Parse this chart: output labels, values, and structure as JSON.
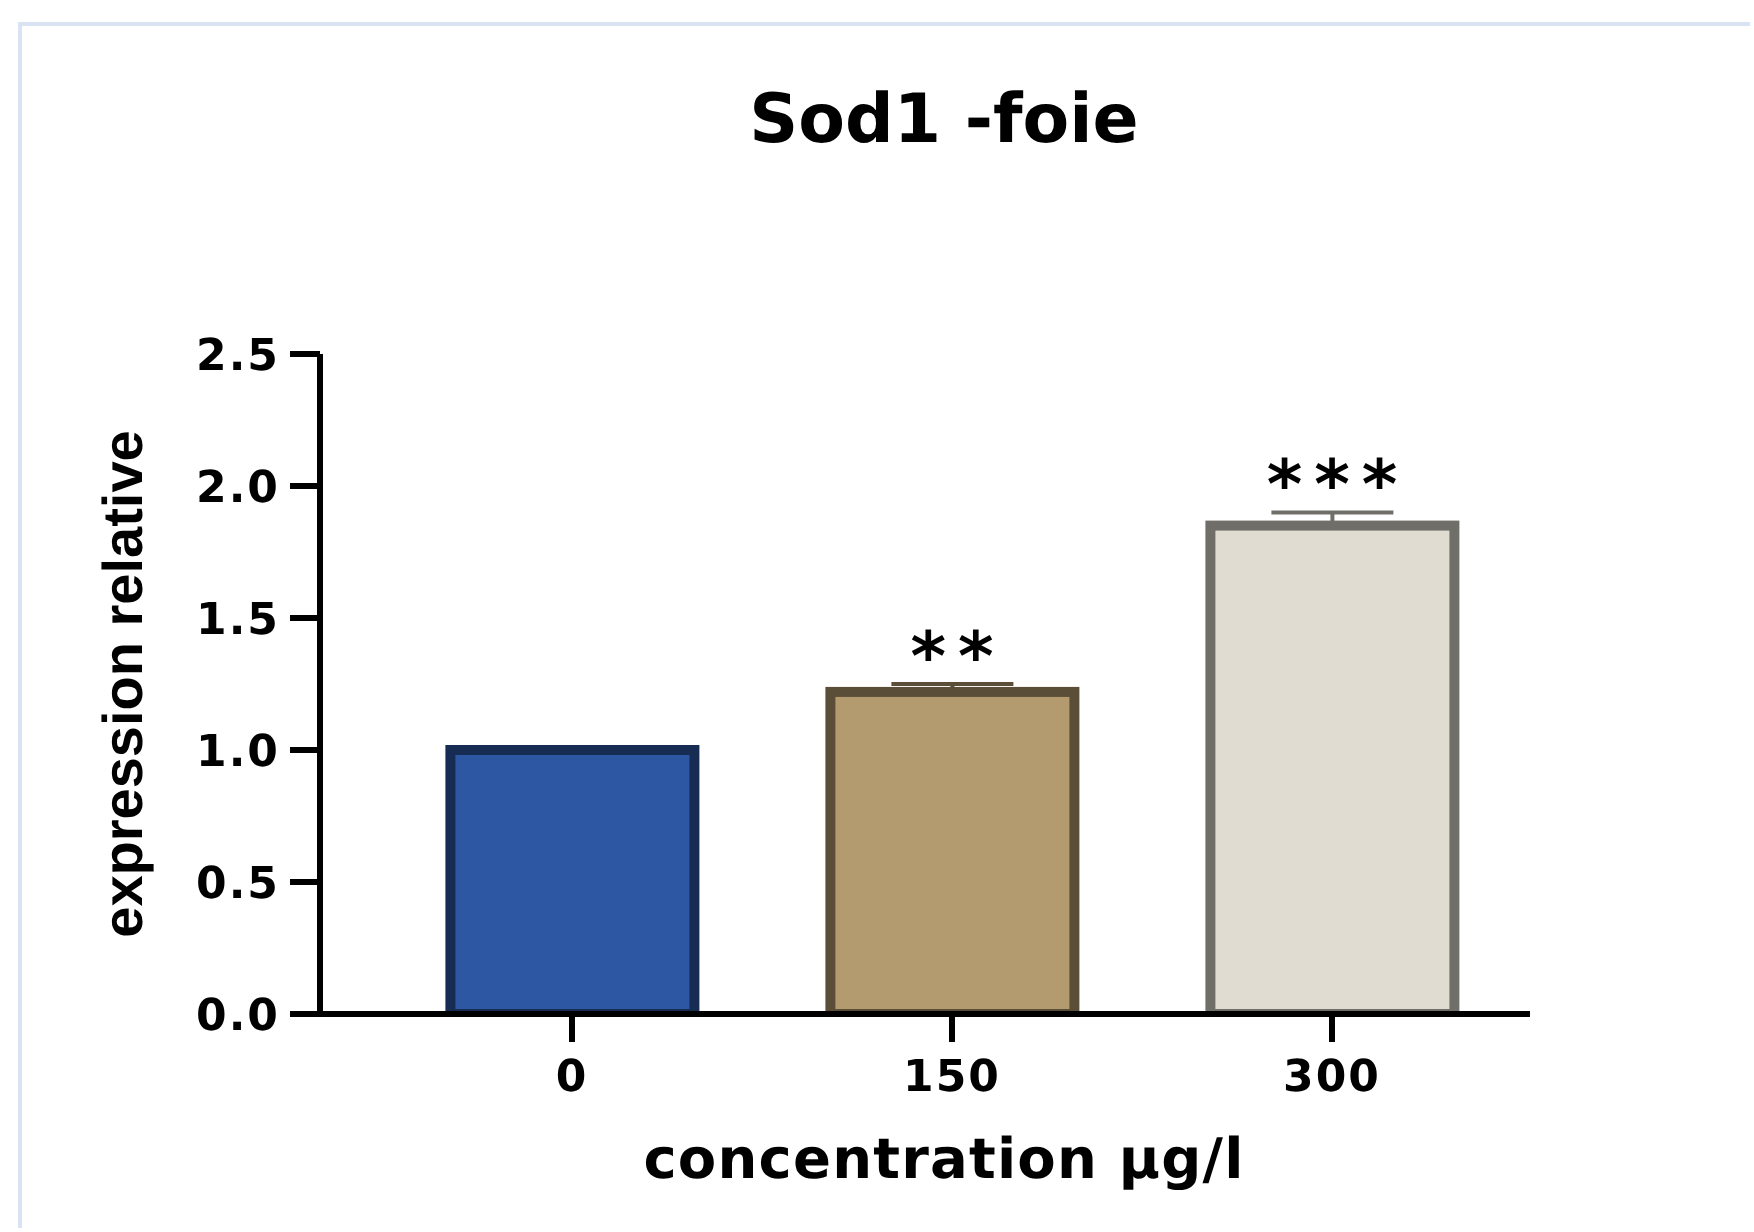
{
  "chart_data": {
    "type": "bar",
    "title": "Sod1 -foie",
    "xlabel": "concentration µg/l",
    "ylabel": "expression relative",
    "categories": [
      "0",
      "150",
      "300"
    ],
    "values": [
      1.0,
      1.22,
      1.85
    ],
    "errors": [
      0.01,
      0.03,
      0.05
    ],
    "colors": [
      "#2e57a3",
      "#b39b6f",
      "#e0dcd1"
    ],
    "ylim": [
      0,
      2.5
    ],
    "yticks": [
      {
        "value": 0,
        "label": "0.0"
      },
      0.5,
      {
        "value": 1,
        "label": "1.0"
      },
      1.5,
      {
        "value": 2,
        "label": "2.0"
      },
      2.5
    ],
    "annotations": [
      "**",
      "***"
    ]
  }
}
